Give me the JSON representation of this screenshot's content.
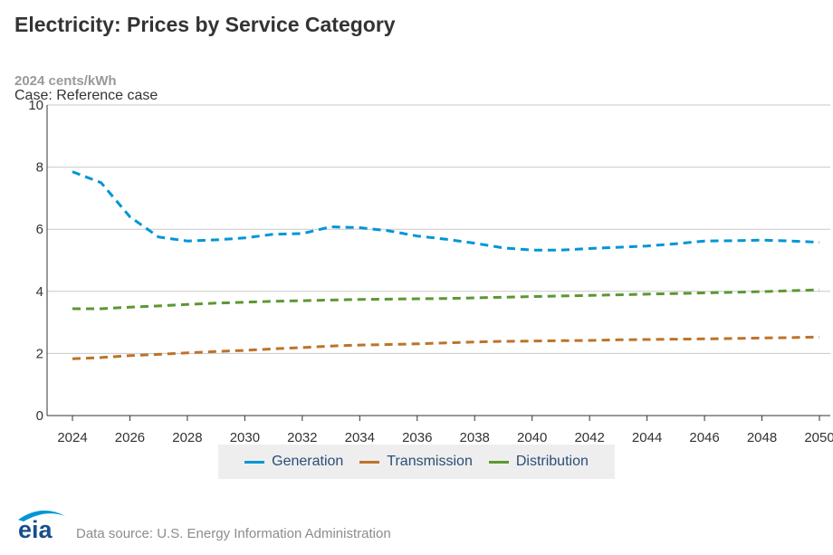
{
  "title": "Electricity: Prices by Service Category",
  "units_label": "2024 cents/kWh",
  "case_label": "Case: Reference case",
  "source": "Data source: U.S. Energy Information Administration",
  "logo_text": "eia",
  "colors": {
    "generation": "#0096d6",
    "transmission": "#bd732a",
    "distribution": "#5d9732",
    "grid": "#c8c8c8",
    "axis": "#333333"
  },
  "chart_data": {
    "type": "line",
    "title": "Electricity: Prices by Service Category",
    "ylabel": "2024 cents/kWh",
    "xlabel": "",
    "xlim": [
      2024,
      2050
    ],
    "ylim": [
      0,
      10
    ],
    "yticks": [
      0,
      2,
      4,
      6,
      8,
      10
    ],
    "xticks": [
      2024,
      2026,
      2028,
      2030,
      2032,
      2034,
      2036,
      2038,
      2040,
      2042,
      2044,
      2046,
      2048,
      2050
    ],
    "grid": true,
    "legend_position": "bottom-center",
    "x": [
      2024,
      2025,
      2026,
      2027,
      2028,
      2029,
      2030,
      2031,
      2032,
      2033,
      2034,
      2035,
      2036,
      2037,
      2038,
      2039,
      2040,
      2041,
      2042,
      2043,
      2044,
      2045,
      2046,
      2047,
      2048,
      2049,
      2050
    ],
    "series": [
      {
        "name": "Generation",
        "color": "#0096d6",
        "values": [
          7.85,
          7.5,
          6.4,
          5.75,
          5.62,
          5.66,
          5.72,
          5.84,
          5.86,
          6.08,
          6.05,
          5.95,
          5.78,
          5.68,
          5.55,
          5.4,
          5.33,
          5.33,
          5.38,
          5.42,
          5.46,
          5.53,
          5.62,
          5.63,
          5.65,
          5.62,
          5.58
        ]
      },
      {
        "name": "Transmission",
        "color": "#bd732a",
        "values": [
          1.83,
          1.87,
          1.93,
          1.97,
          2.02,
          2.06,
          2.1,
          2.15,
          2.19,
          2.24,
          2.27,
          2.29,
          2.31,
          2.34,
          2.37,
          2.39,
          2.4,
          2.41,
          2.42,
          2.44,
          2.45,
          2.46,
          2.47,
          2.48,
          2.5,
          2.51,
          2.53
        ]
      },
      {
        "name": "Distribution",
        "color": "#5d9732",
        "values": [
          3.44,
          3.44,
          3.49,
          3.53,
          3.58,
          3.62,
          3.65,
          3.68,
          3.7,
          3.72,
          3.74,
          3.75,
          3.76,
          3.77,
          3.79,
          3.81,
          3.83,
          3.85,
          3.87,
          3.89,
          3.91,
          3.93,
          3.95,
          3.97,
          3.99,
          4.02,
          4.05
        ]
      }
    ]
  }
}
